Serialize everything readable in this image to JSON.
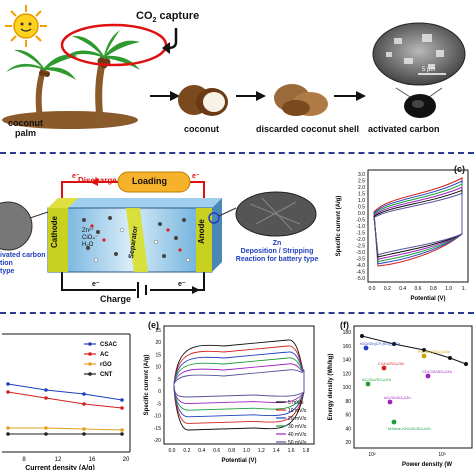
{
  "top": {
    "co2_label": "CO",
    "co2_sub": "2",
    "co2_suffix": " capture",
    "coconut_palm": [
      "coconut",
      "palm"
    ],
    "coconut": "coconut",
    "discarded_shell": "discarded coconut shell",
    "activated_carbon": "activated carbon",
    "scale_bar": "5 μm"
  },
  "battery": {
    "loading": "Loading",
    "discharge": "Discharge",
    "charge": "Charge",
    "electron": "e⁻",
    "cathode": "Cathode",
    "separator": "Separator",
    "anode": "Anode",
    "ions": [
      "Zn²⁺",
      "ClO₄⁻",
      "H₂O"
    ],
    "left_note": [
      "ivated carbon",
      "tion",
      "type"
    ],
    "right_note": [
      "Zn",
      "Deposition / Stripping",
      "Reaction for battery type"
    ]
  },
  "panels": {
    "c": {
      "letter": "(c)",
      "ylabel": "Specific current (A/g)",
      "xlabel": "Potential (V)",
      "yticks": [
        "3.0",
        "2.5",
        "2.0",
        "1.5",
        "1.0",
        "0.5",
        "0.0",
        "-0.5",
        "-1.0",
        "-1.5",
        "-2.0",
        "-2.5",
        "-3.0",
        "-3.5",
        "-4.0",
        "-4.5",
        "-5.0"
      ],
      "xticks": [
        "0.0",
        "0.2",
        "0.4",
        "0.6",
        "0.8",
        "1.0",
        "1."
      ]
    },
    "d": {
      "xlabel": "Current density (A/g)",
      "xticks": [
        "8",
        "12",
        "16",
        "20"
      ],
      "legend": [
        "CSAC",
        "AC",
        "rGO",
        "CNT"
      ],
      "colors": [
        "#1f3fbf",
        "#d42020",
        "#e6a020",
        "#222222"
      ]
    },
    "e": {
      "letter": "(e)",
      "ylabel": "Specific current (A/g)",
      "xlabel": "Potential (V)",
      "yticks": [
        "25",
        "20",
        "15",
        "10",
        "5",
        "0",
        "-5",
        "-10",
        "-15",
        "-20"
      ],
      "xticks": [
        "0.0",
        "0.2",
        "0.4",
        "0.6",
        "0.8",
        "1.0",
        "1.2",
        "1.4",
        "1.6",
        "1.8"
      ],
      "legend": [
        "5 mV/s",
        "10 mV/s",
        "20 mV/s",
        "30 mV/s",
        "40 mV/s",
        "50 mV/s"
      ],
      "colors": [
        "#111111",
        "#d42020",
        "#1f3fbf",
        "#1a9e3a",
        "#a020c0",
        "#555599"
      ]
    },
    "f": {
      "letter": "(f)",
      "ylabel": "Energy density (Wh/kg)",
      "xlabel": "Power density (W",
      "yticks": [
        "180",
        "160",
        "140",
        "120",
        "100",
        "80",
        "60",
        "40",
        "20"
      ],
      "xticks": [
        "10²",
        "10³"
      ],
      "points": [
        {
          "label": "rGO//Zn(CF₃SO₃)₂//Zn",
          "color": "#1f3fbf"
        },
        {
          "label": "PC//Zn(ClO₄)₂//Zn",
          "color": "#d0a000"
        },
        {
          "label": "C//Zn//SO₄//Zn",
          "color": "#d42020"
        },
        {
          "label": "CDC//ZnSO₄//Zn",
          "color": "#a020c0"
        },
        {
          "label": "AC//Zn//SO₄//Zn",
          "color": "#1a9e3a"
        },
        {
          "label": "AC//ZnSO₄//Zn",
          "color": "#a020c0"
        },
        {
          "label": "MXene-rGO//ZnSO₄//Zn",
          "color": "#1a9e3a"
        }
      ]
    }
  }
}
